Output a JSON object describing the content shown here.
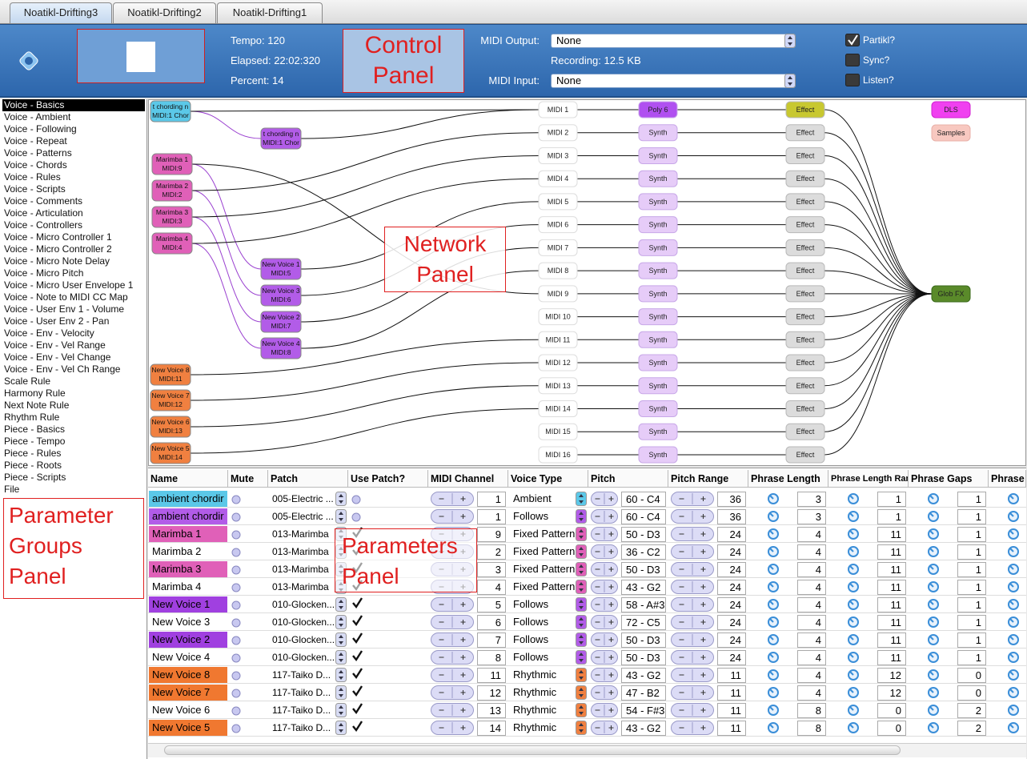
{
  "tabs": [
    "Noatikl-Drifting3",
    "Noatikl-Drifting2",
    "Noatikl-Drifting1"
  ],
  "control_panel": {
    "tempo": "Tempo: 120",
    "elapsed": "Elapsed: 22:02:320",
    "percent": "Percent: 14",
    "annotation": "Control Panel",
    "midi_output_label": "MIDI Output:",
    "midi_output": "None",
    "recording": "Recording: 12.5 KB",
    "midi_input_label": "MIDI Input:",
    "midi_input": "None",
    "checkboxes": [
      {
        "label": "Partikl?",
        "checked": true
      },
      {
        "label": "Sync?",
        "checked": false
      },
      {
        "label": "Listen?",
        "checked": false
      }
    ]
  },
  "parameter_groups": {
    "selected": 0,
    "annotation": "Parameter Groups Panel",
    "items": [
      "Voice - Basics",
      "Voice - Ambient",
      "Voice - Following",
      "Voice - Repeat",
      "Voice - Patterns",
      "Voice - Chords",
      "Voice - Rules",
      "Voice - Scripts",
      "Voice - Comments",
      "Voice - Articulation",
      "Voice - Controllers",
      "Voice - Micro Controller 1",
      "Voice - Micro Controller 2",
      "Voice - Micro Note Delay",
      "Voice - Micro Pitch",
      "Voice - Micro User Envelope 1",
      "Voice - Note to MIDI CC Map",
      "Voice - User Env 1 - Volume",
      "Voice - User Env 2 - Pan",
      "Voice - Env - Velocity",
      "Voice - Env - Vel Range",
      "Voice - Env - Vel Change",
      "Voice - Env - Vel Ch Range",
      "Scale Rule",
      "Harmony Rule",
      "Next Note Rule",
      "Rhythm Rule",
      "Piece - Basics",
      "Piece - Tempo",
      "Piece - Rules",
      "Piece - Roots",
      "Piece - Scripts",
      "File"
    ]
  },
  "network": {
    "annotation": "Network Panel",
    "voices": [
      {
        "lines": [
          "t chording n",
          "MIDI:1 Chor"
        ],
        "color": "#5bc8e8"
      },
      {
        "lines": [
          "t chording n",
          "MIDI:1 Chor"
        ],
        "color": "#b25ce8"
      },
      {
        "lines": [
          "Marimba 1",
          "MIDI:9"
        ],
        "color": "#e060b8"
      },
      {
        "lines": [
          "Marimba 2",
          "MIDI:2"
        ],
        "color": "#e060b8"
      },
      {
        "lines": [
          "Marimba 3",
          "MIDI:3"
        ],
        "color": "#e060b8"
      },
      {
        "lines": [
          "Marimba 4",
          "MIDI:4"
        ],
        "color": "#e060b8"
      },
      {
        "lines": [
          "New Voice 1",
          "MIDI:5"
        ],
        "color": "#b25ce8"
      },
      {
        "lines": [
          "New Voice 3",
          "MIDI:6"
        ],
        "color": "#b25ce8"
      },
      {
        "lines": [
          "New Voice 2",
          "MIDI:7"
        ],
        "color": "#b25ce8"
      },
      {
        "lines": [
          "New Voice 4",
          "MIDI:8"
        ],
        "color": "#b25ce8"
      },
      {
        "lines": [
          "New Voice 8",
          "MIDI:11"
        ],
        "color": "#f08040"
      },
      {
        "lines": [
          "New Voice 7",
          "MIDI:12"
        ],
        "color": "#f08040"
      },
      {
        "lines": [
          "New Voice 6",
          "MIDI:13"
        ],
        "color": "#f08040"
      },
      {
        "lines": [
          "New Voice 5",
          "MIDI:14"
        ],
        "color": "#f08040"
      }
    ],
    "midi": [
      "MIDI 1",
      "MIDI 2",
      "MIDI 3",
      "MIDI 4",
      "MIDI 5",
      "MIDI 6",
      "MIDI 7",
      "MIDI 8",
      "MIDI 9",
      "MIDI 10",
      "MIDI 11",
      "MIDI 12",
      "MIDI 13",
      "MIDI 14",
      "MIDI 15",
      "MIDI 16"
    ],
    "synths": [
      "Poly 6",
      "Synth",
      "Synth",
      "Synth",
      "Synth",
      "Synth",
      "Synth",
      "Synth",
      "Synth",
      "Synth",
      "Synth",
      "Synth",
      "Synth",
      "Synth",
      "Synth",
      "Synth"
    ],
    "effects": [
      "Effect",
      "Effect",
      "Effect",
      "Effect",
      "Effect",
      "Effect",
      "Effect",
      "Effect",
      "Effect",
      "Effect",
      "Effect",
      "Effect",
      "Effect",
      "Effect",
      "Effect",
      "Effect"
    ],
    "glob_fx": "Glob FX",
    "dls": "DLS",
    "samples": "Samples"
  },
  "parameters": {
    "annotation": "Parameters Panel",
    "columns": [
      "Name",
      "Mute",
      "Patch",
      "Use Patch?",
      "MIDI Channel",
      "Voice Type",
      "Pitch",
      "Pitch Range",
      "Phrase Length",
      "Phrase Length Range",
      "Phrase Gaps",
      "Phrase G"
    ],
    "rows": [
      {
        "name": "ambient chordir",
        "name_color": "#5bc8e8",
        "patch": "005-Electric ...",
        "use_patch": false,
        "midi_channel": 1,
        "voice_type": "Ambient",
        "type_color": "#5bc8e8",
        "pitch": "60 - C4",
        "pitch_range": 36,
        "phrase_length": 3,
        "phrase_length_range": 1,
        "phrase_gaps": 1
      },
      {
        "name": "ambient chordir",
        "name_color": "#b25ce8",
        "patch": "005-Electric ...",
        "use_patch": false,
        "midi_channel": 1,
        "voice_type": "Follows",
        "type_color": "#b25ce8",
        "pitch": "60 - C4",
        "pitch_range": 36,
        "phrase_length": 3,
        "phrase_length_range": 1,
        "phrase_gaps": 1
      },
      {
        "name": "Marimba 1",
        "name_color": "#e060b8",
        "patch": "013-Marimba",
        "use_patch": true,
        "midi_channel": 9,
        "voice_type": "Fixed Pattern",
        "type_color": "#e060b8",
        "pitch": "50 - D3",
        "pitch_range": 24,
        "phrase_length": 4,
        "phrase_length_range": 11,
        "phrase_gaps": 1
      },
      {
        "name": "Marimba 2",
        "name_color": "#ffffff",
        "patch": "013-Marimba",
        "use_patch": true,
        "midi_channel": 2,
        "voice_type": "Fixed Pattern",
        "type_color": "#e060b8",
        "pitch": "36 - C2",
        "pitch_range": 24,
        "phrase_length": 4,
        "phrase_length_range": 11,
        "phrase_gaps": 1
      },
      {
        "name": "Marimba 3",
        "name_color": "#e060b8",
        "patch": "013-Marimba",
        "use_patch": true,
        "midi_channel": 3,
        "voice_type": "Fixed Pattern",
        "type_color": "#e060b8",
        "pitch": "50 - D3",
        "pitch_range": 24,
        "phrase_length": 4,
        "phrase_length_range": 11,
        "phrase_gaps": 1
      },
      {
        "name": "Marimba 4",
        "name_color": "#ffffff",
        "patch": "013-Marimba",
        "use_patch": true,
        "midi_channel": 4,
        "voice_type": "Fixed Pattern",
        "type_color": "#e060b8",
        "pitch": "43 - G2",
        "pitch_range": 24,
        "phrase_length": 4,
        "phrase_length_range": 11,
        "phrase_gaps": 1
      },
      {
        "name": "New Voice 1",
        "name_color": "#a040e0",
        "patch": "010-Glocken...",
        "use_patch": true,
        "midi_channel": 5,
        "voice_type": "Follows",
        "type_color": "#b25ce8",
        "pitch": "58 - A#3",
        "pitch_range": 24,
        "phrase_length": 4,
        "phrase_length_range": 11,
        "phrase_gaps": 1
      },
      {
        "name": "New Voice 3",
        "name_color": "#ffffff",
        "patch": "010-Glocken...",
        "use_patch": true,
        "midi_channel": 6,
        "voice_type": "Follows",
        "type_color": "#b25ce8",
        "pitch": "72 - C5",
        "pitch_range": 24,
        "phrase_length": 4,
        "phrase_length_range": 11,
        "phrase_gaps": 1
      },
      {
        "name": "New Voice 2",
        "name_color": "#a040e0",
        "patch": "010-Glocken...",
        "use_patch": true,
        "midi_channel": 7,
        "voice_type": "Follows",
        "type_color": "#b25ce8",
        "pitch": "50 - D3",
        "pitch_range": 24,
        "phrase_length": 4,
        "phrase_length_range": 11,
        "phrase_gaps": 1
      },
      {
        "name": "New Voice 4",
        "name_color": "#ffffff",
        "patch": "010-Glocken...",
        "use_patch": true,
        "midi_channel": 8,
        "voice_type": "Follows",
        "type_color": "#b25ce8",
        "pitch": "50 - D3",
        "pitch_range": 24,
        "phrase_length": 4,
        "phrase_length_range": 11,
        "phrase_gaps": 1
      },
      {
        "name": "New Voice 8",
        "name_color": "#f07830",
        "patch": "117-Taiko D...",
        "use_patch": true,
        "midi_channel": 11,
        "voice_type": "Rhythmic",
        "type_color": "#f08040",
        "pitch": "43 - G2",
        "pitch_range": 11,
        "phrase_length": 4,
        "phrase_length_range": 12,
        "phrase_gaps": 0
      },
      {
        "name": "New Voice 7",
        "name_color": "#f07830",
        "patch": "117-Taiko D...",
        "use_patch": true,
        "midi_channel": 12,
        "voice_type": "Rhythmic",
        "type_color": "#f08040",
        "pitch": "47 - B2",
        "pitch_range": 11,
        "phrase_length": 4,
        "phrase_length_range": 12,
        "phrase_gaps": 0
      },
      {
        "name": "New Voice 6",
        "name_color": "#ffffff",
        "patch": "117-Taiko D...",
        "use_patch": true,
        "midi_channel": 13,
        "voice_type": "Rhythmic",
        "type_color": "#f08040",
        "pitch": "54 - F#3",
        "pitch_range": 11,
        "phrase_length": 8,
        "phrase_length_range": 0,
        "phrase_gaps": 2
      },
      {
        "name": "New Voice 5",
        "name_color": "#f07830",
        "patch": "117-Taiko D...",
        "use_patch": true,
        "midi_channel": 14,
        "voice_type": "Rhythmic",
        "type_color": "#f08040",
        "pitch": "43 - G2",
        "pitch_range": 11,
        "phrase_length": 8,
        "phrase_length_range": 0,
        "phrase_gaps": 2
      }
    ]
  }
}
